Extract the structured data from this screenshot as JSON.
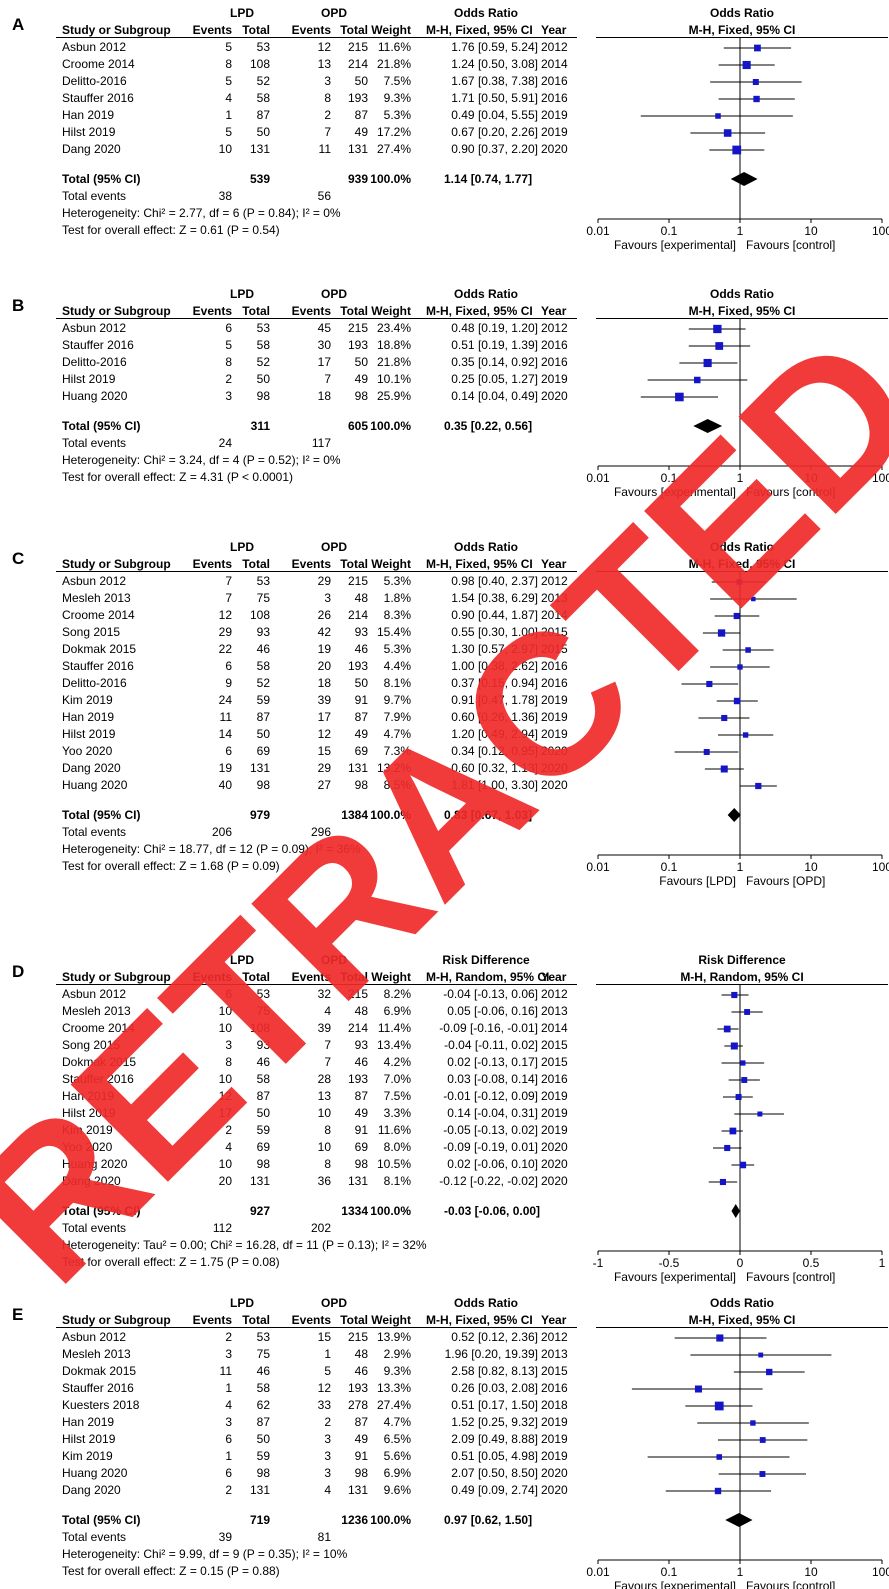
{
  "headers": {
    "study": "Study or Subgroup",
    "events": "Events",
    "total": "Total",
    "weight": "Weight",
    "year": "Year"
  },
  "watermark": {
    "text": "RETRACTED",
    "color": "#f02a2a"
  },
  "colors": {
    "marker": "#1515c8",
    "line": "#000000"
  },
  "chart_data": [
    {
      "panel": "A",
      "type": "forest",
      "group1": "LPD",
      "group2": "OPD",
      "measure": "Odds Ratio",
      "method": "M-H, Fixed, 95% CI",
      "scale": "log",
      "xlim": [
        0.01,
        100
      ],
      "ticks": [
        "0.01",
        "0.1",
        "1",
        "10",
        "100"
      ],
      "favours_left": "Favours [experimental]",
      "favours_right": "Favours [control]",
      "studies": [
        {
          "name": "Asbun 2012",
          "e1": "5",
          "t1": "53",
          "e2": "12",
          "t2": "215",
          "weight": "11.6%",
          "ci_text": "1.76 [0.59, 5.24]",
          "year": "2012",
          "est": 1.76,
          "lo": 0.59,
          "hi": 5.24
        },
        {
          "name": "Croome 2014",
          "e1": "8",
          "t1": "108",
          "e2": "13",
          "t2": "214",
          "weight": "21.8%",
          "ci_text": "1.24 [0.50, 3.08]",
          "year": "2014",
          "est": 1.24,
          "lo": 0.5,
          "hi": 3.08
        },
        {
          "name": "Delitto-2016",
          "e1": "5",
          "t1": "52",
          "e2": "3",
          "t2": "50",
          "weight": "7.5%",
          "ci_text": "1.67 [0.38, 7.38]",
          "year": "2016",
          "est": 1.67,
          "lo": 0.38,
          "hi": 7.38
        },
        {
          "name": "Stauffer 2016",
          "e1": "4",
          "t1": "58",
          "e2": "8",
          "t2": "193",
          "weight": "9.3%",
          "ci_text": "1.71 [0.50, 5.91]",
          "year": "2016",
          "est": 1.71,
          "lo": 0.5,
          "hi": 5.91
        },
        {
          "name": "Han 2019",
          "e1": "1",
          "t1": "87",
          "e2": "2",
          "t2": "87",
          "weight": "5.3%",
          "ci_text": "0.49 [0.04, 5.55]",
          "year": "2019",
          "est": 0.49,
          "lo": 0.04,
          "hi": 5.55
        },
        {
          "name": "Hilst 2019",
          "e1": "5",
          "t1": "50",
          "e2": "7",
          "t2": "49",
          "weight": "17.2%",
          "ci_text": "0.67 [0.20, 2.26]",
          "year": "2019",
          "est": 0.67,
          "lo": 0.2,
          "hi": 2.26
        },
        {
          "name": "Dang 2020",
          "e1": "10",
          "t1": "131",
          "e2": "11",
          "t2": "131",
          "weight": "27.4%",
          "ci_text": "0.90 [0.37, 2.20]",
          "year": "2020",
          "est": 0.9,
          "lo": 0.37,
          "hi": 2.2
        }
      ],
      "total": {
        "label": "Total (95% CI)",
        "t1": "539",
        "t2": "939",
        "weight": "100.0%",
        "ci_text": "1.14 [0.74, 1.77]",
        "est": 1.14,
        "lo": 0.74,
        "hi": 1.77
      },
      "events": {
        "label": "Total events",
        "e1": "38",
        "e2": "56"
      },
      "heterogeneity": "Heterogeneity: Chi² = 2.77, df = 6 (P = 0.84); I² = 0%",
      "overall": "Test for overall effect: Z = 0.61 (P = 0.54)"
    },
    {
      "panel": "B",
      "type": "forest",
      "group1": "LPD",
      "group2": "OPD",
      "measure": "Odds Ratio",
      "method": "M-H, Fixed, 95% CI",
      "scale": "log",
      "xlim": [
        0.01,
        100
      ],
      "ticks": [
        "0.01",
        "0.1",
        "1",
        "10",
        "100"
      ],
      "favours_left": "Favours [experimental]",
      "favours_right": "Favours [control]",
      "studies": [
        {
          "name": "Asbun 2012",
          "e1": "6",
          "t1": "53",
          "e2": "45",
          "t2": "215",
          "weight": "23.4%",
          "ci_text": "0.48 [0.19, 1.20]",
          "year": "2012",
          "est": 0.48,
          "lo": 0.19,
          "hi": 1.2
        },
        {
          "name": "Stauffer 2016",
          "e1": "5",
          "t1": "58",
          "e2": "30",
          "t2": "193",
          "weight": "18.8%",
          "ci_text": "0.51 [0.19, 1.39]",
          "year": "2016",
          "est": 0.51,
          "lo": 0.19,
          "hi": 1.39
        },
        {
          "name": "Delitto-2016",
          "e1": "8",
          "t1": "52",
          "e2": "17",
          "t2": "50",
          "weight": "21.8%",
          "ci_text": "0.35 [0.14, 0.92]",
          "year": "2016",
          "est": 0.35,
          "lo": 0.14,
          "hi": 0.92
        },
        {
          "name": "Hilst 2019",
          "e1": "2",
          "t1": "50",
          "e2": "7",
          "t2": "49",
          "weight": "10.1%",
          "ci_text": "0.25 [0.05, 1.27]",
          "year": "2019",
          "est": 0.25,
          "lo": 0.05,
          "hi": 1.27
        },
        {
          "name": "Huang 2020",
          "e1": "3",
          "t1": "98",
          "e2": "18",
          "t2": "98",
          "weight": "25.9%",
          "ci_text": "0.14 [0.04, 0.49]",
          "year": "2020",
          "est": 0.14,
          "lo": 0.04,
          "hi": 0.49
        }
      ],
      "total": {
        "label": "Total (95% CI)",
        "t1": "311",
        "t2": "605",
        "weight": "100.0%",
        "ci_text": "0.35 [0.22, 0.56]",
        "est": 0.35,
        "lo": 0.22,
        "hi": 0.56
      },
      "events": {
        "label": "Total events",
        "e1": "24",
        "e2": "117"
      },
      "heterogeneity": "Heterogeneity: Chi² = 3.24, df = 4 (P = 0.52); I² = 0%",
      "overall": "Test for overall effect: Z = 4.31 (P < 0.0001)"
    },
    {
      "panel": "C",
      "type": "forest",
      "group1": "LPD",
      "group2": "OPD",
      "measure": "Odds Ratio",
      "method": "M-H, Fixed, 95% CI",
      "scale": "log",
      "xlim": [
        0.01,
        100
      ],
      "ticks": [
        "0.01",
        "0.1",
        "1",
        "10",
        "100"
      ],
      "favours_left": "Favours [LPD]",
      "favours_right": "Favours [OPD]",
      "studies": [
        {
          "name": "Asbun 2012",
          "e1": "7",
          "t1": "53",
          "e2": "29",
          "t2": "215",
          "weight": "5.3%",
          "ci_text": "0.98 [0.40, 2.37]",
          "year": "2012",
          "est": 0.98,
          "lo": 0.4,
          "hi": 2.37
        },
        {
          "name": "Mesleh 2013",
          "e1": "7",
          "t1": "75",
          "e2": "3",
          "t2": "48",
          "weight": "1.8%",
          "ci_text": "1.54 [0.38, 6.29]",
          "year": "2013",
          "est": 1.54,
          "lo": 0.38,
          "hi": 6.29
        },
        {
          "name": "Croome 2014",
          "e1": "12",
          "t1": "108",
          "e2": "26",
          "t2": "214",
          "weight": "8.3%",
          "ci_text": "0.90 [0.44, 1.87]",
          "year": "2014",
          "est": 0.9,
          "lo": 0.44,
          "hi": 1.87
        },
        {
          "name": "Song 2015",
          "e1": "29",
          "t1": "93",
          "e2": "42",
          "t2": "93",
          "weight": "15.4%",
          "ci_text": "0.55 [0.30, 1.00]",
          "year": "2015",
          "est": 0.55,
          "lo": 0.3,
          "hi": 1.0
        },
        {
          "name": "Dokmak 2015",
          "e1": "22",
          "t1": "46",
          "e2": "19",
          "t2": "46",
          "weight": "5.3%",
          "ci_text": "1.30 [0.57, 2.97]",
          "year": "2015",
          "est": 1.3,
          "lo": 0.57,
          "hi": 2.97
        },
        {
          "name": "Stauffer 2016",
          "e1": "6",
          "t1": "58",
          "e2": "20",
          "t2": "193",
          "weight": "4.4%",
          "ci_text": "1.00 [0.38, 2.62]",
          "year": "2016",
          "est": 1.0,
          "lo": 0.38,
          "hi": 2.62
        },
        {
          "name": "Delitto-2016",
          "e1": "9",
          "t1": "52",
          "e2": "18",
          "t2": "50",
          "weight": "8.1%",
          "ci_text": "0.37 [0.15, 0.94]",
          "year": "2016",
          "est": 0.37,
          "lo": 0.15,
          "hi": 0.94
        },
        {
          "name": "Kim 2019",
          "e1": "24",
          "t1": "59",
          "e2": "39",
          "t2": "91",
          "weight": "9.7%",
          "ci_text": "0.91 [0.47, 1.78]",
          "year": "2019",
          "est": 0.91,
          "lo": 0.47,
          "hi": 1.78
        },
        {
          "name": "Han 2019",
          "e1": "11",
          "t1": "87",
          "e2": "17",
          "t2": "87",
          "weight": "7.9%",
          "ci_text": "0.60 [0.26, 1.36]",
          "year": "2019",
          "est": 0.6,
          "lo": 0.26,
          "hi": 1.36
        },
        {
          "name": "Hilst 2019",
          "e1": "14",
          "t1": "50",
          "e2": "12",
          "t2": "49",
          "weight": "4.7%",
          "ci_text": "1.20 [0.49, 2.94]",
          "year": "2019",
          "est": 1.2,
          "lo": 0.49,
          "hi": 2.94
        },
        {
          "name": "Yoo 2020",
          "e1": "6",
          "t1": "69",
          "e2": "15",
          "t2": "69",
          "weight": "7.3%",
          "ci_text": "0.34 [0.12, 0.95]",
          "year": "2020",
          "est": 0.34,
          "lo": 0.12,
          "hi": 0.95
        },
        {
          "name": "Dang 2020",
          "e1": "19",
          "t1": "131",
          "e2": "29",
          "t2": "131",
          "weight": "13.2%",
          "ci_text": "0.60 [0.32, 1.13]",
          "year": "2020",
          "est": 0.6,
          "lo": 0.32,
          "hi": 1.13
        },
        {
          "name": "Huang 2020",
          "e1": "40",
          "t1": "98",
          "e2": "27",
          "t2": "98",
          "weight": "8.5%",
          "ci_text": "1.81 [1.00, 3.30]",
          "year": "2020",
          "est": 1.81,
          "lo": 1.0,
          "hi": 3.3
        }
      ],
      "total": {
        "label": "Total (95% CI)",
        "t1": "979",
        "t2": "1384",
        "weight": "100.0%",
        "ci_text": "0.83 [0.67, 1.03]",
        "est": 0.83,
        "lo": 0.67,
        "hi": 1.03
      },
      "events": {
        "label": "Total events",
        "e1": "206",
        "e2": "296"
      },
      "heterogeneity": "Heterogeneity: Chi² = 18.77, df = 12 (P = 0.09); I² = 36%",
      "overall": "Test for overall effect: Z = 1.68 (P = 0.09)"
    },
    {
      "panel": "D",
      "type": "forest",
      "group1": "LPD",
      "group2": "OPD",
      "measure": "Risk Difference",
      "method": "M-H, Random, 95% CI",
      "scale": "linear",
      "xlim": [
        -1,
        1
      ],
      "ticks": [
        "-1",
        "-0.5",
        "0",
        "0.5",
        "1"
      ],
      "favours_left": "Favours [experimental]",
      "favours_right": "Favours [control]",
      "studies": [
        {
          "name": "Asbun 2012",
          "e1": "6",
          "t1": "53",
          "e2": "32",
          "t2": "215",
          "weight": "8.2%",
          "ci_text": "-0.04 [-0.13, 0.06]",
          "year": "2012",
          "est": -0.04,
          "lo": -0.13,
          "hi": 0.06
        },
        {
          "name": "Mesleh 2013",
          "e1": "10",
          "t1": "75",
          "e2": "4",
          "t2": "48",
          "weight": "6.9%",
          "ci_text": "0.05 [-0.06, 0.16]",
          "year": "2013",
          "est": 0.05,
          "lo": -0.06,
          "hi": 0.16
        },
        {
          "name": "Croome 2014",
          "e1": "10",
          "t1": "108",
          "e2": "39",
          "t2": "214",
          "weight": "11.4%",
          "ci_text": "-0.09 [-0.16, -0.01]",
          "year": "2014",
          "est": -0.09,
          "lo": -0.16,
          "hi": -0.01
        },
        {
          "name": "Song 2015",
          "e1": "3",
          "t1": "93",
          "e2": "7",
          "t2": "93",
          "weight": "13.4%",
          "ci_text": "-0.04 [-0.11, 0.02]",
          "year": "2015",
          "est": -0.04,
          "lo": -0.11,
          "hi": 0.02
        },
        {
          "name": "Dokmak 2015",
          "e1": "8",
          "t1": "46",
          "e2": "7",
          "t2": "46",
          "weight": "4.2%",
          "ci_text": "0.02 [-0.13, 0.17]",
          "year": "2015",
          "est": 0.02,
          "lo": -0.13,
          "hi": 0.17
        },
        {
          "name": "Stauffer 2016",
          "e1": "10",
          "t1": "58",
          "e2": "28",
          "t2": "193",
          "weight": "7.0%",
          "ci_text": "0.03 [-0.08, 0.14]",
          "year": "2016",
          "est": 0.03,
          "lo": -0.08,
          "hi": 0.14
        },
        {
          "name": "Han 2019",
          "e1": "12",
          "t1": "87",
          "e2": "13",
          "t2": "87",
          "weight": "7.5%",
          "ci_text": "-0.01 [-0.12, 0.09]",
          "year": "2019",
          "est": -0.01,
          "lo": -0.12,
          "hi": 0.09
        },
        {
          "name": "Hilst 2019",
          "e1": "17",
          "t1": "50",
          "e2": "10",
          "t2": "49",
          "weight": "3.3%",
          "ci_text": "0.14 [-0.04, 0.31]",
          "year": "2019",
          "est": 0.14,
          "lo": -0.04,
          "hi": 0.31
        },
        {
          "name": "Kim 2019",
          "e1": "2",
          "t1": "59",
          "e2": "8",
          "t2": "91",
          "weight": "11.6%",
          "ci_text": "-0.05 [-0.13, 0.02]",
          "year": "2019",
          "est": -0.05,
          "lo": -0.13,
          "hi": 0.02
        },
        {
          "name": "Yoo 2020",
          "e1": "4",
          "t1": "69",
          "e2": "10",
          "t2": "69",
          "weight": "8.0%",
          "ci_text": "-0.09 [-0.19, 0.01]",
          "year": "2020",
          "est": -0.09,
          "lo": -0.19,
          "hi": 0.01
        },
        {
          "name": "Huang 2020",
          "e1": "10",
          "t1": "98",
          "e2": "8",
          "t2": "98",
          "weight": "10.5%",
          "ci_text": "0.02 [-0.06, 0.10]",
          "year": "2020",
          "est": 0.02,
          "lo": -0.06,
          "hi": 0.1
        },
        {
          "name": "Dang 2020",
          "e1": "20",
          "t1": "131",
          "e2": "36",
          "t2": "131",
          "weight": "8.1%",
          "ci_text": "-0.12 [-0.22, -0.02]",
          "year": "2020",
          "est": -0.12,
          "lo": -0.22,
          "hi": -0.02
        }
      ],
      "total": {
        "label": "Total (95% CI)",
        "t1": "927",
        "t2": "1334",
        "weight": "100.0%",
        "ci_text": "-0.03 [-0.06, 0.00]",
        "est": -0.03,
        "lo": -0.06,
        "hi": 0.0
      },
      "events": {
        "label": "Total events",
        "e1": "112",
        "e2": "202"
      },
      "heterogeneity": "Heterogeneity: Tau² = 0.00; Chi² = 16.28, df = 11 (P = 0.13); I² = 32%",
      "overall": "Test for overall effect: Z = 1.75 (P = 0.08)"
    },
    {
      "panel": "E",
      "type": "forest",
      "group1": "LPD",
      "group2": "OPD",
      "measure": "Odds Ratio",
      "method": "M-H, Fixed, 95% CI",
      "scale": "log",
      "xlim": [
        0.01,
        100
      ],
      "ticks": [
        "0.01",
        "0.1",
        "1",
        "10",
        "100"
      ],
      "favours_left": "Favours [experimental]",
      "favours_right": "Favours [control]",
      "studies": [
        {
          "name": "Asbun 2012",
          "e1": "2",
          "t1": "53",
          "e2": "15",
          "t2": "215",
          "weight": "13.9%",
          "ci_text": "0.52 [0.12, 2.36]",
          "year": "2012",
          "est": 0.52,
          "lo": 0.12,
          "hi": 2.36
        },
        {
          "name": "Mesleh 2013",
          "e1": "3",
          "t1": "75",
          "e2": "1",
          "t2": "48",
          "weight": "2.9%",
          "ci_text": "1.96 [0.20, 19.39]",
          "year": "2013",
          "est": 1.96,
          "lo": 0.2,
          "hi": 19.39
        },
        {
          "name": "Dokmak 2015",
          "e1": "11",
          "t1": "46",
          "e2": "5",
          "t2": "46",
          "weight": "9.3%",
          "ci_text": "2.58 [0.82, 8.13]",
          "year": "2015",
          "est": 2.58,
          "lo": 0.82,
          "hi": 8.13
        },
        {
          "name": "Stauffer 2016",
          "e1": "1",
          "t1": "58",
          "e2": "12",
          "t2": "193",
          "weight": "13.3%",
          "ci_text": "0.26 [0.03, 2.08]",
          "year": "2016",
          "est": 0.26,
          "lo": 0.03,
          "hi": 2.08
        },
        {
          "name": "Kuesters 2018",
          "e1": "4",
          "t1": "62",
          "e2": "33",
          "t2": "278",
          "weight": "27.4%",
          "ci_text": "0.51 [0.17, 1.50]",
          "year": "2018",
          "est": 0.51,
          "lo": 0.17,
          "hi": 1.5
        },
        {
          "name": "Han 2019",
          "e1": "3",
          "t1": "87",
          "e2": "2",
          "t2": "87",
          "weight": "4.7%",
          "ci_text": "1.52 [0.25, 9.32]",
          "year": "2019",
          "est": 1.52,
          "lo": 0.25,
          "hi": 9.32
        },
        {
          "name": "Hilst 2019",
          "e1": "6",
          "t1": "50",
          "e2": "3",
          "t2": "49",
          "weight": "6.5%",
          "ci_text": "2.09 [0.49, 8.88]",
          "year": "2019",
          "est": 2.09,
          "lo": 0.49,
          "hi": 8.88
        },
        {
          "name": "Kim 2019",
          "e1": "1",
          "t1": "59",
          "e2": "3",
          "t2": "91",
          "weight": "5.6%",
          "ci_text": "0.51 [0.05, 4.98]",
          "year": "2019",
          "est": 0.51,
          "lo": 0.05,
          "hi": 4.98
        },
        {
          "name": "Huang 2020",
          "e1": "6",
          "t1": "98",
          "e2": "3",
          "t2": "98",
          "weight": "6.9%",
          "ci_text": "2.07 [0.50, 8.50]",
          "year": "2020",
          "est": 2.07,
          "lo": 0.5,
          "hi": 8.5
        },
        {
          "name": "Dang 2020",
          "e1": "2",
          "t1": "131",
          "e2": "4",
          "t2": "131",
          "weight": "9.6%",
          "ci_text": "0.49 [0.09, 2.74]",
          "year": "2020",
          "est": 0.49,
          "lo": 0.09,
          "hi": 2.74
        }
      ],
      "total": {
        "label": "Total (95% CI)",
        "t1": "719",
        "t2": "1236",
        "weight": "100.0%",
        "ci_text": "0.97 [0.62, 1.50]",
        "est": 0.97,
        "lo": 0.62,
        "hi": 1.5
      },
      "events": {
        "label": "Total events",
        "e1": "39",
        "e2": "81"
      },
      "heterogeneity": "Heterogeneity: Chi² = 9.99, df = 9 (P = 0.35); I² = 10%",
      "overall": "Test for overall effect: Z = 0.15 (P = 0.88)"
    }
  ]
}
